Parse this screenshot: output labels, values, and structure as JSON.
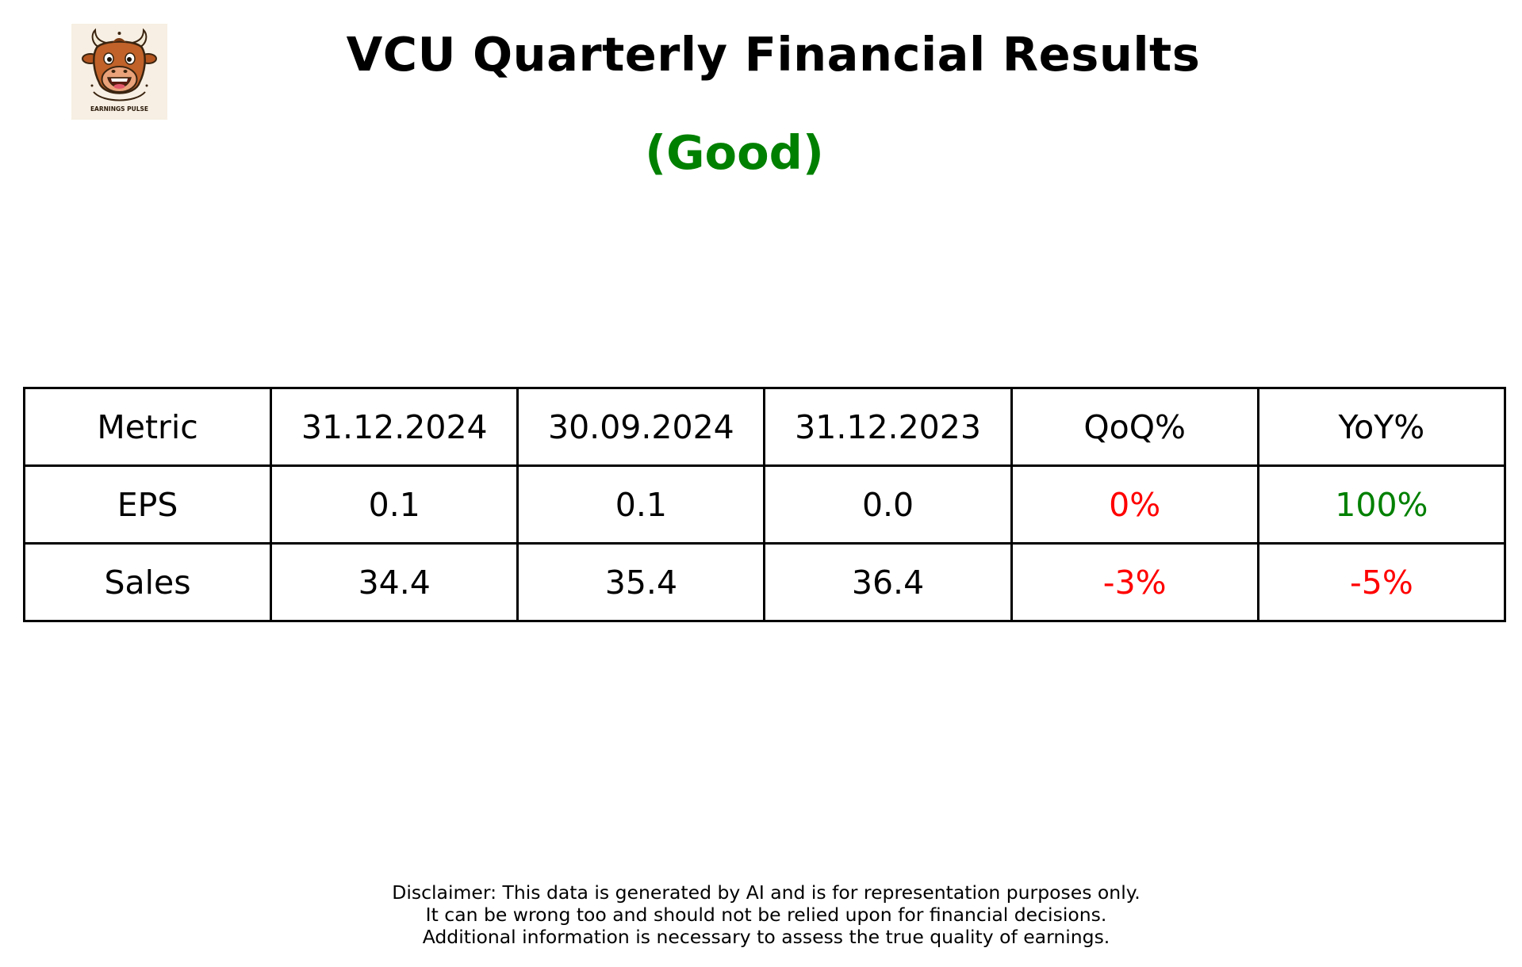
{
  "colors": {
    "good": "#008000",
    "negative": "#ff0000",
    "positive": "#008000",
    "text": "#000000"
  },
  "logo": {
    "icon": "bull-mascot-icon",
    "caption": "EARNINGS PULSE"
  },
  "chart_data": {
    "type": "table",
    "title": "VCU Quarterly Financial Results",
    "subtitle": "(Good)",
    "columns": [
      "Metric",
      "31.12.2024",
      "30.09.2024",
      "31.12.2023",
      "QoQ%",
      "YoY%"
    ],
    "rows": [
      {
        "metric": "EPS",
        "values": [
          "0.1",
          "0.1",
          "0.0"
        ],
        "qoq": "0%",
        "qoq_color": "#ff0000",
        "yoy": "100%",
        "yoy_color": "#008000"
      },
      {
        "metric": "Sales",
        "values": [
          "34.4",
          "35.4",
          "36.4"
        ],
        "qoq": "-3%",
        "qoq_color": "#ff0000",
        "yoy": "-5%",
        "yoy_color": "#ff0000"
      }
    ]
  },
  "disclaimer": [
    "Disclaimer: This data is generated by AI and is for representation purposes only.",
    "It can be wrong too and should not be relied upon for financial decisions.",
    "Additional information is necessary to assess the true quality of earnings."
  ]
}
